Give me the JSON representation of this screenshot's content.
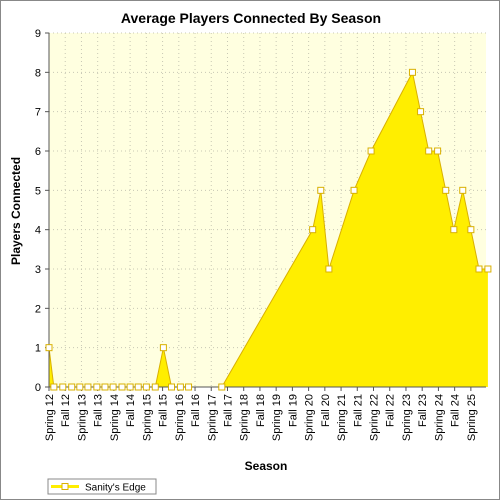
{
  "chart_data": {
    "type": "area",
    "title": "Average Players Connected By Season",
    "xlabel": "Season",
    "ylabel": "Players Connected",
    "ylim": [
      0,
      9
    ],
    "yticks": [
      0,
      1,
      2,
      3,
      4,
      5,
      6,
      7,
      8,
      9
    ],
    "grid": true,
    "legend_position": "bottom-left",
    "categories": [
      "Spring 12",
      "Fall 12",
      "Spring 13",
      "Fall 13",
      "Spring 14",
      "Fall 14",
      "Spring 15",
      "Fall 15",
      "Spring 16",
      "Fall 16",
      "Spring 17",
      "Fall 17",
      "Spring 18",
      "Fall 18",
      "Spring 19",
      "Fall 19",
      "Spring 20",
      "Fall 20",
      "Spring 21",
      "Fall 21",
      "Spring 22",
      "Fall 22",
      "Spring 23",
      "Fall 23",
      "Spring 24",
      "Fall 24",
      "Spring 25"
    ],
    "series": [
      {
        "name": "Sanity's Edge",
        "color": "#ffee00",
        "line_color": "#d9b000",
        "points": [
          {
            "x": 0.0,
            "y": 1
          },
          {
            "x": 0.3,
            "y": 0
          },
          {
            "x": 0.85,
            "y": 0
          },
          {
            "x": 1.4,
            "y": 0
          },
          {
            "x": 1.9,
            "y": 0
          },
          {
            "x": 2.4,
            "y": 0
          },
          {
            "x": 2.95,
            "y": 0
          },
          {
            "x": 3.45,
            "y": 0
          },
          {
            "x": 3.95,
            "y": 0
          },
          {
            "x": 4.5,
            "y": 0
          },
          {
            "x": 5.0,
            "y": 0
          },
          {
            "x": 5.5,
            "y": 0
          },
          {
            "x": 6.0,
            "y": 0
          },
          {
            "x": 6.55,
            "y": 0
          },
          {
            "x": 7.05,
            "y": 1
          },
          {
            "x": 7.55,
            "y": 0
          },
          {
            "x": 8.1,
            "y": 0
          },
          {
            "x": 8.6,
            "y": 0
          },
          {
            "x": 10.1,
            "y": 0,
            "marker": false
          },
          {
            "x": 10.65,
            "y": 0
          },
          {
            "x": 16.25,
            "y": 4
          },
          {
            "x": 16.75,
            "y": 5
          },
          {
            "x": 17.25,
            "y": 3
          },
          {
            "x": 18.8,
            "y": 5
          },
          {
            "x": 19.85,
            "y": 6
          },
          {
            "x": 22.4,
            "y": 8
          },
          {
            "x": 22.9,
            "y": 7
          },
          {
            "x": 23.4,
            "y": 6
          },
          {
            "x": 23.95,
            "y": 6
          },
          {
            "x": 24.45,
            "y": 5
          },
          {
            "x": 24.95,
            "y": 4
          },
          {
            "x": 25.5,
            "y": 5
          },
          {
            "x": 26.0,
            "y": 4
          },
          {
            "x": 26.5,
            "y": 3
          },
          {
            "x": 27.05,
            "y": 3
          }
        ]
      }
    ]
  }
}
